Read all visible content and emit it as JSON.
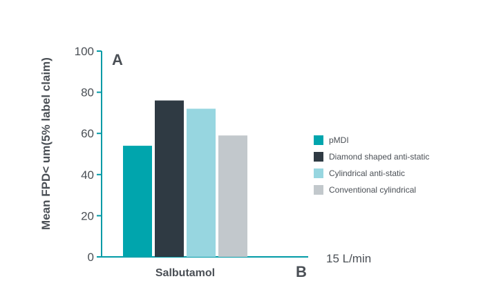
{
  "chart_data": {
    "type": "bar",
    "categories": [
      "Salbutamol"
    ],
    "series": [
      {
        "name": "pMDI",
        "values": [
          54
        ],
        "color": "#00a5ad"
      },
      {
        "name": "Diamond shaped anti-static",
        "values": [
          76
        ],
        "color": "#2f3a43"
      },
      {
        "name": "Cylindrical anti-static",
        "values": [
          72
        ],
        "color": "#97d6e0"
      },
      {
        "name": "Conventional cylindrical",
        "values": [
          59
        ],
        "color": "#c2c8cc"
      }
    ],
    "ylabel": "Mean FPD< um(5% label claim)",
    "yticks": [
      "0",
      "20",
      "40",
      "60",
      "80",
      "100"
    ],
    "ylim": [
      0,
      100
    ],
    "panel_top": "A",
    "panel_bottom": "B",
    "flow_rate": "15 L/min",
    "legend_position": "right",
    "grid": false,
    "axis_color": "#009aa6"
  }
}
